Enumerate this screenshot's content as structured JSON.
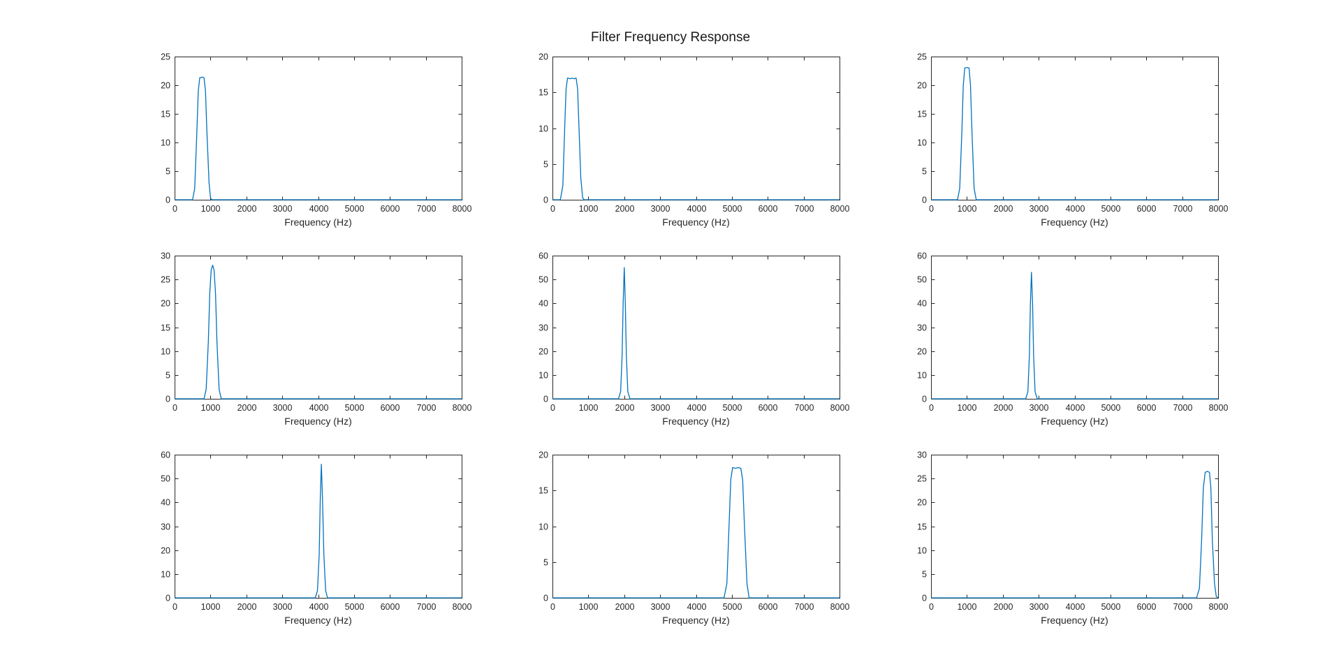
{
  "figure": {
    "title": "Filter Frequency Response",
    "line_color": "#0072BD"
  },
  "chart_data": [
    {
      "type": "line",
      "xlabel": "Frequency (Hz)",
      "ylabel": "",
      "xlim": [
        0,
        8000
      ],
      "ylim": [
        0,
        25
      ],
      "xticks": [
        0,
        1000,
        2000,
        3000,
        4000,
        5000,
        6000,
        7000,
        8000
      ],
      "yticks": [
        0,
        5,
        10,
        15,
        20,
        25
      ],
      "grid": false,
      "x": [
        0,
        500,
        560,
        620,
        660,
        700,
        780,
        820,
        860,
        900,
        960,
        1000,
        1040,
        8000
      ],
      "y": [
        0,
        0,
        2,
        12,
        19,
        21.3,
        21.4,
        21.3,
        19,
        12,
        3,
        0.3,
        0,
        0
      ]
    },
    {
      "type": "line",
      "xlabel": "Frequency (Hz)",
      "ylabel": "",
      "xlim": [
        0,
        8000
      ],
      "ylim": [
        0,
        20
      ],
      "xticks": [
        0,
        1000,
        2000,
        3000,
        4000,
        5000,
        6000,
        7000,
        8000
      ],
      "yticks": [
        0,
        5,
        10,
        15,
        20
      ],
      "grid": false,
      "x": [
        0,
        220,
        290,
        340,
        380,
        420,
        500,
        550,
        600,
        660,
        700,
        740,
        790,
        840,
        880,
        8000
      ],
      "y": [
        0,
        0,
        2,
        10,
        15.5,
        17,
        16.9,
        17,
        16.9,
        17,
        15.5,
        10,
        3,
        0.3,
        0,
        0
      ]
    },
    {
      "type": "line",
      "xlabel": "Frequency (Hz)",
      "ylabel": "",
      "xlim": [
        0,
        8000
      ],
      "ylim": [
        0,
        25
      ],
      "xticks": [
        0,
        1000,
        2000,
        3000,
        4000,
        5000,
        6000,
        7000,
        8000
      ],
      "yticks": [
        0,
        5,
        10,
        15,
        20,
        25
      ],
      "grid": false,
      "x": [
        0,
        740,
        800,
        860,
        900,
        940,
        1000,
        1060,
        1100,
        1140,
        1200,
        1260,
        8000
      ],
      "y": [
        0,
        0,
        2,
        12,
        20,
        23,
        23.1,
        23,
        20,
        12,
        2,
        0,
        0
      ]
    },
    {
      "type": "line",
      "xlabel": "Frequency (Hz)",
      "ylabel": "",
      "xlim": [
        0,
        8000
      ],
      "ylim": [
        0,
        30
      ],
      "xticks": [
        0,
        1000,
        2000,
        3000,
        4000,
        5000,
        6000,
        7000,
        8000
      ],
      "yticks": [
        0,
        5,
        10,
        15,
        20,
        25,
        30
      ],
      "grid": false,
      "x": [
        0,
        820,
        880,
        940,
        980,
        1020,
        1060,
        1100,
        1140,
        1180,
        1240,
        1300,
        8000
      ],
      "y": [
        0,
        0,
        2,
        12,
        22,
        27,
        28,
        27,
        22,
        12,
        2,
        0,
        0
      ]
    },
    {
      "type": "line",
      "xlabel": "Frequency (Hz)",
      "ylabel": "",
      "xlim": [
        0,
        8000
      ],
      "ylim": [
        0,
        60
      ],
      "xticks": [
        0,
        1000,
        2000,
        3000,
        4000,
        5000,
        6000,
        7000,
        8000
      ],
      "yticks": [
        0,
        10,
        20,
        30,
        40,
        50,
        60
      ],
      "grid": false,
      "x": [
        0,
        1840,
        1900,
        1940,
        1970,
        2000,
        2030,
        2060,
        2100,
        2160,
        8000
      ],
      "y": [
        0,
        0,
        3,
        18,
        40,
        55,
        40,
        18,
        3,
        0,
        0
      ]
    },
    {
      "type": "line",
      "xlabel": "Frequency (Hz)",
      "ylabel": "",
      "xlim": [
        0,
        8000
      ],
      "ylim": [
        0,
        60
      ],
      "xticks": [
        0,
        1000,
        2000,
        3000,
        4000,
        5000,
        6000,
        7000,
        8000
      ],
      "yticks": [
        0,
        10,
        20,
        30,
        40,
        50,
        60
      ],
      "grid": false,
      "x": [
        0,
        2640,
        2700,
        2740,
        2770,
        2800,
        2830,
        2860,
        2900,
        2960,
        8000
      ],
      "y": [
        0,
        0,
        3,
        18,
        40,
        53,
        40,
        18,
        3,
        0,
        0
      ]
    },
    {
      "type": "line",
      "xlabel": "Frequency (Hz)",
      "ylabel": "",
      "xlim": [
        0,
        8000
      ],
      "ylim": [
        0,
        60
      ],
      "xticks": [
        0,
        1000,
        2000,
        3000,
        4000,
        5000,
        6000,
        7000,
        8000
      ],
      "yticks": [
        0,
        10,
        20,
        30,
        40,
        50,
        60
      ],
      "grid": false,
      "x": [
        0,
        3920,
        3980,
        4030,
        4060,
        4090,
        4120,
        4160,
        4210,
        4260,
        8000
      ],
      "y": [
        0,
        0,
        3,
        18,
        42,
        56,
        42,
        18,
        3,
        0,
        0
      ]
    },
    {
      "type": "line",
      "xlabel": "Frequency (Hz)",
      "ylabel": "",
      "xlim": [
        0,
        8000
      ],
      "ylim": [
        0,
        20
      ],
      "xticks": [
        0,
        1000,
        2000,
        3000,
        4000,
        5000,
        6000,
        7000,
        8000
      ],
      "yticks": [
        0,
        5,
        10,
        15,
        20
      ],
      "grid": false,
      "x": [
        0,
        4780,
        4860,
        4920,
        4970,
        5020,
        5100,
        5180,
        5250,
        5300,
        5350,
        5420,
        5480,
        8000
      ],
      "y": [
        0,
        0,
        2,
        10,
        16.5,
        18.2,
        18.1,
        18.2,
        18.1,
        16.5,
        10,
        2,
        0,
        0
      ]
    },
    {
      "type": "line",
      "xlabel": "Frequency (Hz)",
      "ylabel": "",
      "xlim": [
        0,
        8000
      ],
      "ylim": [
        0,
        30
      ],
      "xticks": [
        0,
        1000,
        2000,
        3000,
        4000,
        5000,
        6000,
        7000,
        8000
      ],
      "yticks": [
        0,
        5,
        10,
        15,
        20,
        25,
        30
      ],
      "grid": false,
      "x": [
        0,
        7400,
        7480,
        7540,
        7590,
        7640,
        7700,
        7760,
        7800,
        7840,
        7900,
        7950,
        8000
      ],
      "y": [
        0,
        0,
        2,
        12,
        23,
        26.3,
        26.5,
        26.3,
        23,
        12,
        3,
        0.3,
        0
      ]
    }
  ]
}
